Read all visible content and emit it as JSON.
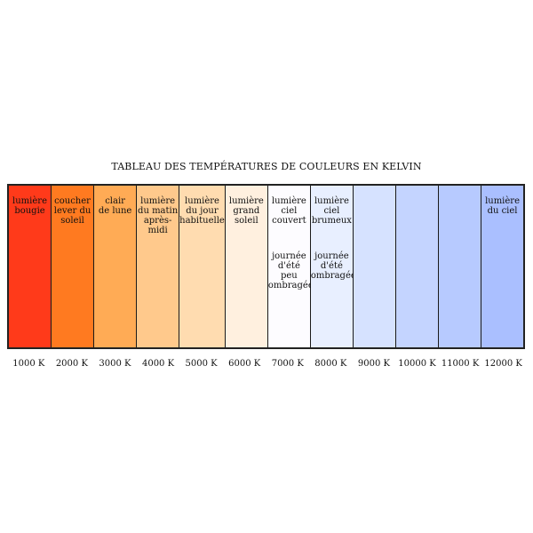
{
  "title": "TABLEAU DES TEMPÉRATURES DE COULEURS EN KELVIN",
  "bands": [
    {
      "kelvin": "1000 K",
      "label": "lumière\nbougie",
      "sub": "",
      "color": "#ff3a1a"
    },
    {
      "kelvin": "2000 K",
      "label": "coucher\nlever du\nsoleil",
      "sub": "",
      "color": "#ff7a20"
    },
    {
      "kelvin": "3000 K",
      "label": "clair\nde lune",
      "sub": "",
      "color": "#ffab55"
    },
    {
      "kelvin": "4000 K",
      "label": "lumière\ndu matin\naprès-midi",
      "sub": "",
      "color": "#ffc98c"
    },
    {
      "kelvin": "5000 K",
      "label": "lumière\ndu jour\nhabituelle",
      "sub": "",
      "color": "#ffdcb0"
    },
    {
      "kelvin": "6000 K",
      "label": "lumière\ngrand\nsoleil",
      "sub": "",
      "color": "#fff0df"
    },
    {
      "kelvin": "7000 K",
      "label": "lumière\nciel\ncouvert",
      "sub": "journée\nd'été\npeu\nombragée",
      "color": "#fdfcff"
    },
    {
      "kelvin": "8000 K",
      "label": "lumière\nciel\nbrumeux",
      "sub": "journée\nd'été\nombragée",
      "color": "#e8efff"
    },
    {
      "kelvin": "9000 K",
      "label": "",
      "sub": "",
      "color": "#d6e2ff"
    },
    {
      "kelvin": "10000 K",
      "label": "",
      "sub": "",
      "color": "#c4d4ff"
    },
    {
      "kelvin": "11000 K",
      "label": "",
      "sub": "",
      "color": "#b7caff"
    },
    {
      "kelvin": "12000 K",
      "label": "lumière\ndu ciel",
      "sub": "",
      "color": "#aabfff"
    }
  ]
}
